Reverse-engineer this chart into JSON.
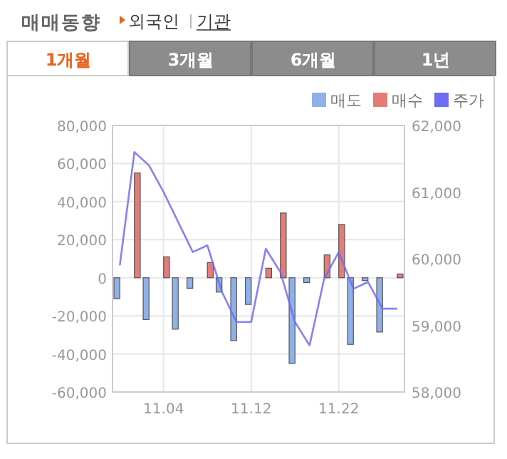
{
  "chart_data": {
    "type": "bar",
    "title": "매매동향",
    "annotations": [
      "외국인",
      "기관",
      "1개월",
      "3개월",
      "6개월",
      "1년"
    ],
    "categories": [
      null,
      null,
      null,
      "11.04",
      null,
      null,
      null,
      null,
      null,
      "11.12",
      null,
      null,
      null,
      null,
      null,
      "11.22",
      null,
      null,
      null,
      null
    ],
    "series": [
      {
        "name": "매도",
        "color": "#8fb0e8",
        "values": [
          -11000,
          0,
          -22000,
          0,
          -27000,
          -5500,
          0,
          -7500,
          -33000,
          -14000,
          0,
          0,
          -45000,
          -2500,
          0,
          0,
          -35000,
          -1500,
          -28500,
          0
        ]
      },
      {
        "name": "매수",
        "color": "#e57c78",
        "values": [
          0,
          55000,
          0,
          11000,
          0,
          0,
          8000,
          0,
          0,
          0,
          5000,
          34000,
          0,
          0,
          12000,
          28000,
          0,
          0,
          0,
          2000
        ]
      },
      {
        "name": "주가",
        "type": "line",
        "axis": "y2",
        "color": "#6f6cf5",
        "values": [
          59900,
          61600,
          61400,
          61000,
          60550,
          60100,
          60200,
          59500,
          59050,
          59050,
          60150,
          59800,
          59050,
          58700,
          59700,
          60100,
          59550,
          59650,
          59250,
          59250
        ]
      }
    ],
    "ylim": [
      -60000,
      80000
    ],
    "yticks": [
      {
        "value": -60000,
        "label": "-60,000"
      },
      {
        "value": -40000,
        "label": "-40,000"
      },
      {
        "value": -20000,
        "label": "-20,000"
      },
      0,
      {
        "value": 20000,
        "label": "20,000"
      },
      {
        "value": 40000,
        "label": "40,000"
      },
      {
        "value": 60000,
        "label": "60,000"
      },
      {
        "value": 80000,
        "label": "80,000"
      }
    ],
    "y2lim": [
      58000,
      62000
    ],
    "y2ticks": [
      {
        "value": 58000,
        "label": "58,000"
      },
      {
        "value": 59000,
        "label": "59,000"
      },
      {
        "value": 60000,
        "label": "60,000"
      },
      {
        "value": 61000,
        "label": "61,000"
      },
      {
        "value": 62000,
        "label": "62,000"
      }
    ],
    "grid": true,
    "legend": "top right"
  }
}
